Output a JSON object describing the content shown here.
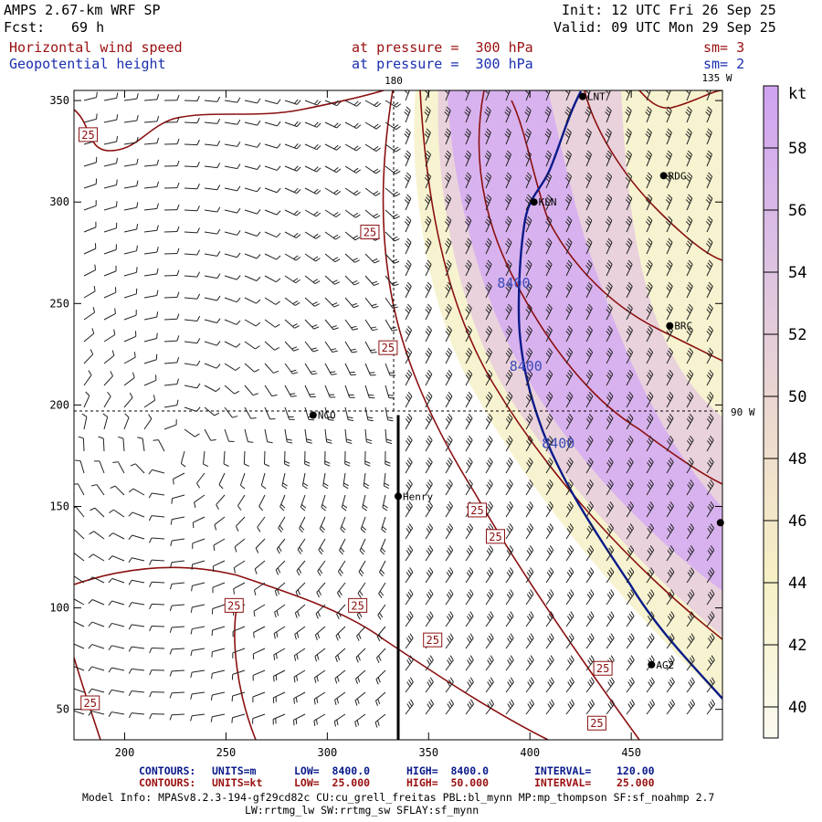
{
  "header": {
    "model": "AMPS 2.67-km WRF SP",
    "init": "Init: 12 UTC Fri 26 Sep 25",
    "fcst_label": "Fcst:",
    "fcst_value": "69 h",
    "valid": "Valid: 09 UTC Mon 29 Sep 25",
    "field1": "Horizontal wind speed",
    "field1_level": "at pressure =  300 hPa",
    "field1_sm": "sm= 3",
    "field2": "Geopotential height",
    "field2_level": "at pressure =  300 hPa",
    "field2_sm": "sm= 2"
  },
  "colors": {
    "wind_fill_low": "#f6f3cf",
    "wind_fill_high": "#d0a6f0",
    "wind_contour": "#8b1010",
    "height_contour": "#0a1a8a",
    "section_line": "#000000"
  },
  "chart_data": {
    "type": "heatmap",
    "xlim": [
      175,
      495
    ],
    "ylim": [
      35,
      355
    ],
    "x_ticks": [
      200,
      250,
      300,
      350,
      400,
      450
    ],
    "y_ticks": [
      50,
      100,
      150,
      200,
      250,
      300,
      350
    ],
    "grid_labels": {
      "lon_180": "180",
      "lon_135w": "135 W",
      "lon_90w": "90 W"
    },
    "colorbar": {
      "unit": "kt",
      "ticks": [
        40,
        42,
        44,
        46,
        48,
        50,
        52,
        54,
        56,
        58
      ],
      "range": [
        39,
        60
      ]
    },
    "stations": [
      {
        "name": "LNT",
        "x": 426,
        "y": 352
      },
      {
        "name": "RDG",
        "x": 466,
        "y": 313
      },
      {
        "name": "KLN",
        "x": 402,
        "y": 300
      },
      {
        "name": "BRC",
        "x": 469,
        "y": 239
      },
      {
        "name": "NCO",
        "x": 293,
        "y": 195
      },
      {
        "name": "Henry",
        "x": 335,
        "y": 155
      },
      {
        "name": "AG2",
        "x": 460,
        "y": 72
      }
    ],
    "extra_dot": {
      "x": 494,
      "y": 142
    },
    "wind_contour_labels": [
      {
        "text": "25",
        "x": 182,
        "y": 333
      },
      {
        "text": "25",
        "x": 321,
        "y": 285
      },
      {
        "text": "25",
        "x": 330,
        "y": 228
      },
      {
        "text": "25",
        "x": 374,
        "y": 148
      },
      {
        "text": "25",
        "x": 383,
        "y": 135
      },
      {
        "text": "25",
        "x": 254,
        "y": 101
      },
      {
        "text": "25",
        "x": 315,
        "y": 101
      },
      {
        "text": "25",
        "x": 352,
        "y": 84
      },
      {
        "text": "25",
        "x": 436,
        "y": 70
      },
      {
        "text": "25",
        "x": 433,
        "y": 43
      },
      {
        "text": "25",
        "x": 183,
        "y": 53
      }
    ],
    "height_labels": [
      {
        "text": "8400",
        "x": 392,
        "y": 260
      },
      {
        "text": "8400",
        "x": 398,
        "y": 219
      },
      {
        "text": "8400",
        "x": 414,
        "y": 181
      }
    ],
    "cross_section": {
      "x": 335,
      "y_from": 35,
      "y_to": 195
    }
  },
  "footer": {
    "contours1_label": "CONTOURS:",
    "contours1_units": "UNITS=m",
    "contours1_low": "LOW=  8400.0",
    "contours1_high": "HIGH=  8400.0",
    "contours1_interval": "INTERVAL=    120.00",
    "contours2_label": "CONTOURS:",
    "contours2_units": "UNITS=kt",
    "contours2_low": "LOW=  25.000",
    "contours2_high": "HIGH=  50.000",
    "contours2_interval": "INTERVAL=    25.000",
    "model_info_1": "Model Info: MPASv8.2.3-194-gf29cd82c CU:cu_grell_freitas PBL:bl_mynn MP:mp_thompson SF:sf_noahmp 2.7",
    "model_info_2": "LW:rrtmg_lw SW:rrtmg_sw SFLAY:sf_mynn"
  }
}
